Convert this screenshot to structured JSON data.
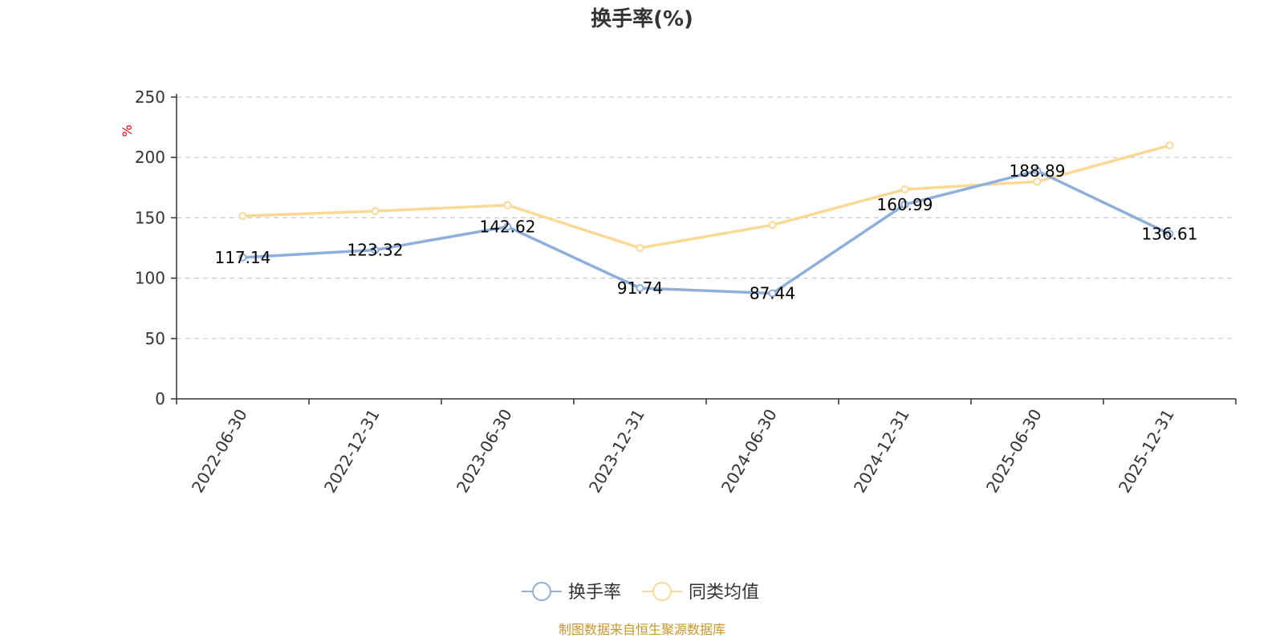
{
  "chart_data": {
    "type": "line",
    "title": "换手率(%)",
    "ylabel": "%",
    "ylim": [
      0,
      250
    ],
    "yticks": [
      0,
      50,
      100,
      150,
      200,
      250
    ],
    "categories": [
      "2022-06-30",
      "2022-12-31",
      "2023-06-30",
      "2023-12-31",
      "2024-06-30",
      "2024-12-31",
      "2025-06-30",
      "2025-12-31"
    ],
    "series": [
      {
        "name": "换手率",
        "color": "#8eaedb",
        "values": [
          117.14,
          123.32,
          142.62,
          91.74,
          87.44,
          160.99,
          188.89,
          136.61
        ],
        "labels": [
          "117.14",
          "123.32",
          "142.62",
          "91.74",
          "87.44",
          "160.99",
          "188.89",
          "136.61"
        ]
      },
      {
        "name": "同类均值",
        "color": "#fad996",
        "values": [
          151.5,
          155.5,
          160.5,
          125.0,
          144.0,
          173.5,
          180.0,
          210.0
        ]
      }
    ],
    "grid": true,
    "legend_position": "bottom-center"
  },
  "footer": {
    "source": "制图数据来自恒生聚源数据库"
  }
}
